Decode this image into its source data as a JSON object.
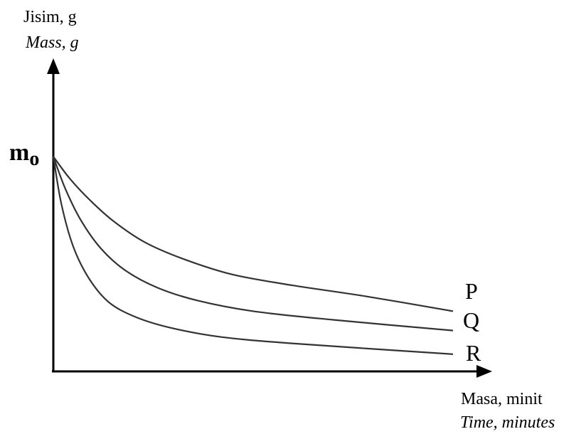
{
  "chart_data": {
    "type": "line",
    "title": "",
    "ylabel": "Jisim, g",
    "ylabel_en": "Mass, g",
    "xlabel": "Masa, minit",
    "xlabel_en": "Time, minutes",
    "y_tick_label": "m",
    "y_tick_label_sub": "o",
    "grid": false,
    "axes": "arrows, no numeric scale",
    "series": [
      {
        "name": "P",
        "x": [
          0,
          0.04,
          0.09,
          0.15,
          0.23,
          0.33,
          0.45,
          0.6,
          0.78,
          1.0
        ],
        "y": [
          1.0,
          0.9,
          0.8,
          0.7,
          0.6,
          0.52,
          0.45,
          0.4,
          0.35,
          0.28
        ]
      },
      {
        "name": "Q",
        "x": [
          0,
          0.03,
          0.07,
          0.12,
          0.18,
          0.26,
          0.36,
          0.5,
          0.7,
          1.0
        ],
        "y": [
          1.0,
          0.85,
          0.7,
          0.57,
          0.47,
          0.39,
          0.33,
          0.28,
          0.24,
          0.19
        ]
      },
      {
        "name": "R",
        "x": [
          0,
          0.02,
          0.05,
          0.09,
          0.14,
          0.21,
          0.3,
          0.42,
          0.6,
          1.0
        ],
        "y": [
          1.0,
          0.78,
          0.58,
          0.43,
          0.32,
          0.25,
          0.2,
          0.16,
          0.13,
          0.08
        ]
      }
    ]
  }
}
